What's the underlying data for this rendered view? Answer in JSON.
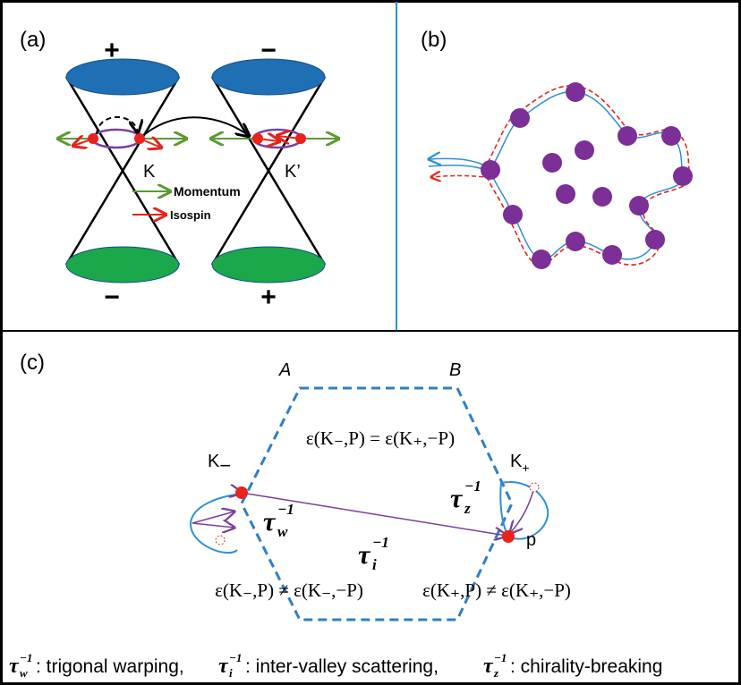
{
  "panel_a": {
    "label": "(a)",
    "cone_left": {
      "top_sign": "+",
      "bottom_sign": "−",
      "valley": "K"
    },
    "cone_right": {
      "top_sign": "−",
      "bottom_sign": "+",
      "valley": "K’"
    },
    "legend": {
      "momentum": "Momentum",
      "isospin": "Isospin"
    }
  },
  "panel_b": {
    "label": "(b)"
  },
  "panel_c": {
    "label": "(c)",
    "sublattice_a": "A",
    "sublattice_b": "B",
    "valley_minus": {
      "letter": "K",
      "sub": "−"
    },
    "valley_plus": {
      "letter": "K",
      "sub": "+"
    },
    "momentum": "p",
    "equality": "ε(K₋,P) = ε(K₊,−P)",
    "inequality_minus": "ε(K₋,P) ≠ ε(K₋,−P)",
    "inequality_plus": "ε(K₊,P) ≠ ε(K₊,−P)",
    "tau_w": {
      "symbol": "τ",
      "sub": "w",
      "sup": "−1"
    },
    "tau_i": {
      "symbol": "τ",
      "sub": "i",
      "sup": "−1"
    },
    "tau_z": {
      "symbol": "τ",
      "sub": "z",
      "sup": "−1"
    },
    "caption": [
      {
        "symbol": "τ",
        "sub": "w",
        "sup": "−1",
        "text": " : trigonal warping,"
      },
      {
        "symbol": "τ",
        "sub": "i",
        "sup": "−1",
        "text": " : inter-valley scattering,"
      },
      {
        "symbol": "τ",
        "sub": "z",
        "sup": "−1",
        "text": " : chirality-breaking"
      }
    ]
  }
}
